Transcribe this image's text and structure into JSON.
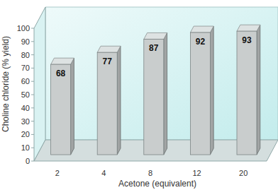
{
  "chart_data": {
    "type": "bar",
    "categories": [
      "2",
      "4",
      "8",
      "12",
      "20"
    ],
    "values": [
      68,
      77,
      87,
      92,
      93
    ],
    "x_label": "Acetone (equivalent)",
    "y_label": "Choline chloride (% yield)",
    "color": "#c9cdcd",
    "ylim": [
      0,
      100
    ],
    "yticks": [
      0,
      10,
      20,
      30,
      40,
      50,
      60,
      70,
      80,
      90,
      100
    ],
    "grid": false,
    "data_labels": true
  }
}
